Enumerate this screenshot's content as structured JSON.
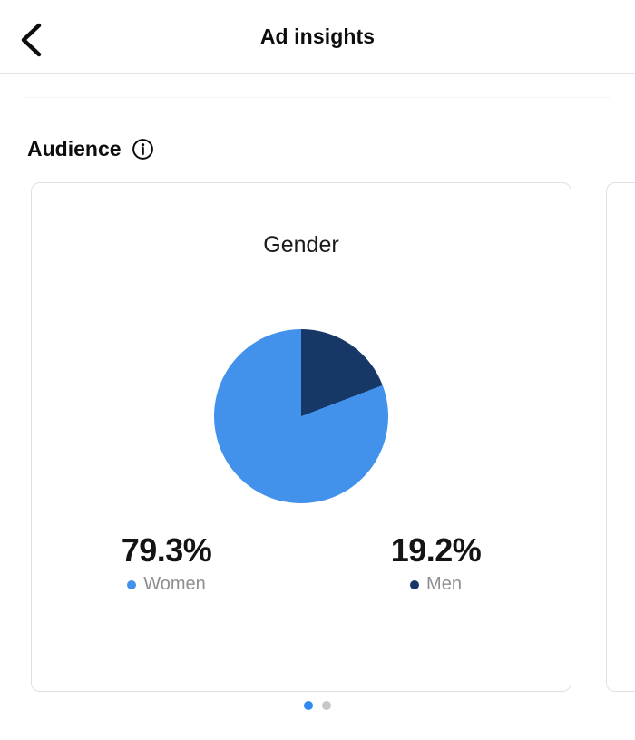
{
  "header": {
    "title": "Ad insights",
    "back_icon": "chevron-left"
  },
  "section": {
    "title": "Audience",
    "info_icon": "info-circle"
  },
  "chart_data": {
    "type": "pie",
    "title": "Gender",
    "slices": [
      {
        "label": "Women",
        "value": 79.3,
        "display": "79.3%",
        "color": "#4292EC"
      },
      {
        "label": "Men",
        "value": 19.2,
        "display": "19.2%",
        "color": "#173767"
      }
    ],
    "start_angle_deg": 0,
    "direction": "clockwise",
    "first_slice_at_top": "Men",
    "legend_position": "below-chart"
  },
  "pagination": {
    "dot_count": 2,
    "active_index": 0,
    "active_color": "#2F8AF0",
    "inactive_color": "#C7C7C7"
  }
}
